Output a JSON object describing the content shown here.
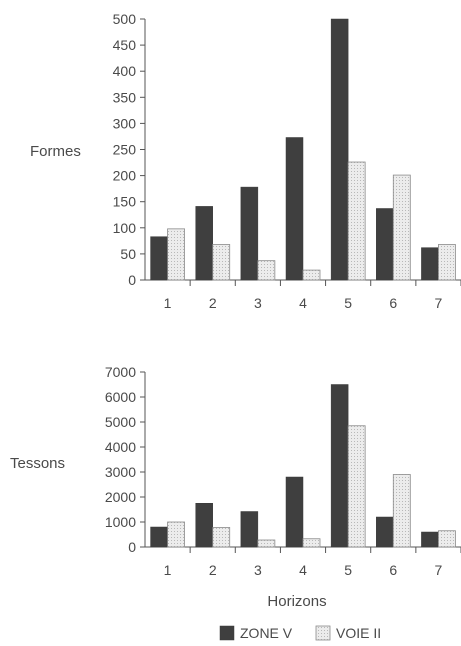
{
  "chart_data": [
    {
      "type": "bar",
      "ylabel": "Formes",
      "xlabel": "",
      "categories": [
        "1",
        "2",
        "3",
        "4",
        "5",
        "6",
        "7"
      ],
      "ylim": [
        0,
        500
      ],
      "yticks": [
        0,
        50,
        100,
        150,
        200,
        250,
        300,
        350,
        400,
        450,
        500
      ],
      "series": [
        {
          "name": "ZONE V",
          "values": [
            83,
            141,
            178,
            273,
            500,
            137,
            62
          ]
        },
        {
          "name": "VOIE II",
          "values": [
            98,
            68,
            37,
            19,
            226,
            201,
            68
          ]
        }
      ]
    },
    {
      "type": "bar",
      "ylabel": "Tessons",
      "xlabel": "Horizons",
      "categories": [
        "1",
        "2",
        "3",
        "4",
        "5",
        "6",
        "7"
      ],
      "ylim": [
        0,
        7000
      ],
      "yticks": [
        0,
        1000,
        2000,
        3000,
        4000,
        5000,
        6000,
        7000
      ],
      "series": [
        {
          "name": "ZONE V",
          "values": [
            800,
            1750,
            1420,
            2800,
            6500,
            1200,
            600
          ]
        },
        {
          "name": "VOIE II",
          "values": [
            1000,
            780,
            280,
            330,
            4850,
            2900,
            650
          ]
        }
      ]
    }
  ],
  "legend": {
    "position": "bottom",
    "items": [
      {
        "label": "ZONE V",
        "color": "#3f3f3f"
      },
      {
        "label": "VOIE II",
        "color": "#e2e2e2"
      }
    ]
  }
}
